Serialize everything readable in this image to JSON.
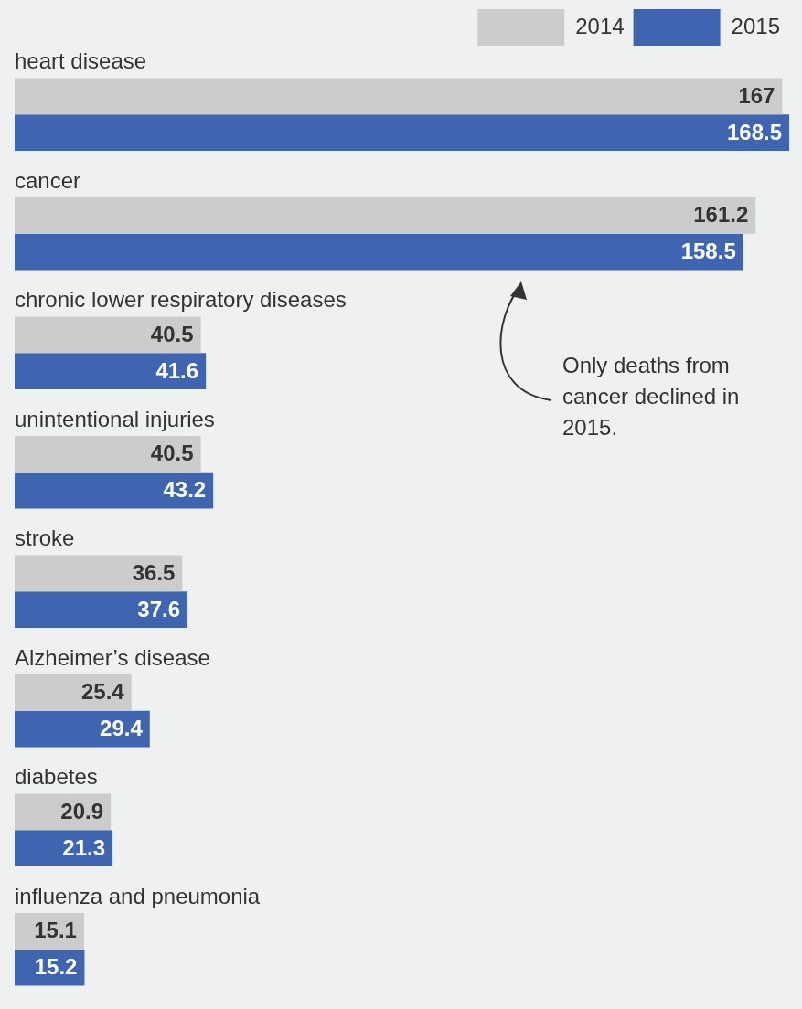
{
  "chart_data": {
    "type": "bar",
    "orientation": "horizontal",
    "categories": [
      "heart disease",
      "cancer",
      "chronic lower respiratory diseases",
      "unintentional injuries",
      "stroke",
      "Alzheimer’s disease",
      "diabetes",
      "influenza and pneumonia"
    ],
    "series": [
      {
        "name": "2014",
        "color": "#cccccc",
        "values": [
          167,
          161.2,
          40.5,
          40.5,
          36.5,
          25.4,
          20.9,
          15.1
        ]
      },
      {
        "name": "2015",
        "color": "#3f65b0",
        "values": [
          168.5,
          158.5,
          41.6,
          43.2,
          37.6,
          29.4,
          21.3,
          15.2
        ]
      }
    ],
    "data_labels": true,
    "legend": "top right",
    "annotations": [
      "Only deaths from cancer declined in 2015."
    ]
  }
}
